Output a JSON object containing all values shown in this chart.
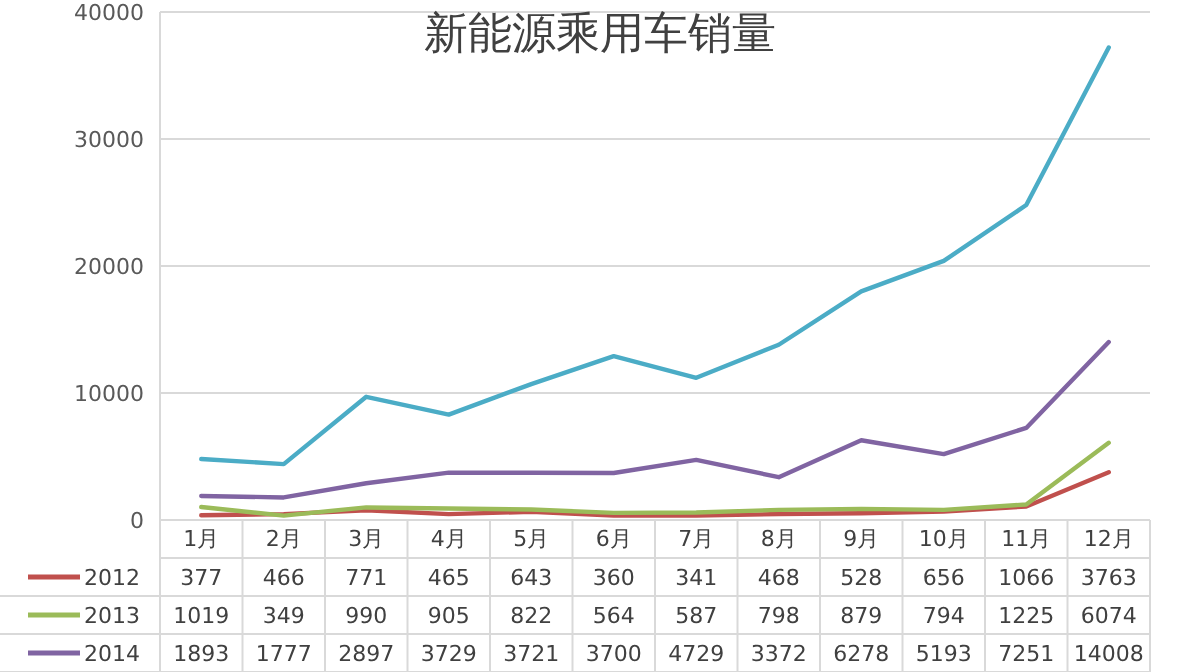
{
  "chart_data": {
    "type": "line",
    "title": "新能源乘用车销量",
    "categories": [
      "1月",
      "2月",
      "3月",
      "4月",
      "5月",
      "6月",
      "7月",
      "8月",
      "9月",
      "10月",
      "11月",
      "12月"
    ],
    "series": [
      {
        "name": "2012",
        "color": "#c0504d",
        "values": [
          377,
          466,
          771,
          465,
          643,
          360,
          341,
          468,
          528,
          656,
          1066,
          3763
        ],
        "value_labels": [
          "377",
          "466",
          "771",
          "465",
          "643",
          "360",
          "341",
          "468",
          "528",
          "656",
          "1066",
          "3763"
        ]
      },
      {
        "name": "2013",
        "color": "#9bbb59",
        "values": [
          1019,
          349,
          990,
          905,
          822,
          564,
          587,
          798,
          879,
          794,
          1225,
          6074
        ],
        "value_labels": [
          "1019",
          "349",
          "990",
          "905",
          "822",
          "564",
          "587",
          "798",
          "879",
          "794",
          "1225",
          "6074"
        ]
      },
      {
        "name": "2014",
        "color": "#8064a2",
        "values": [
          1893,
          1777,
          2897,
          3729,
          3721,
          3700,
          4729,
          3372,
          6278,
          5193,
          7251,
          14008
        ],
        "value_labels": [
          "1893",
          "1777",
          "2897",
          "3729",
          "3721",
          "3700",
          "4729",
          "3372",
          "6278",
          "5193",
          "7251",
          "14008"
        ]
      },
      {
        "color": "#4bacc6",
        "values": [
          4800,
          4400,
          9700,
          8300,
          10700,
          12900,
          11200,
          13800,
          18000,
          20400,
          24800,
          37200
        ]
      }
    ],
    "ylim": [
      0,
      40000
    ],
    "yticks": [
      0,
      10000,
      20000,
      30000,
      40000
    ],
    "grid": "y",
    "legend": "bottom",
    "line_style": "solid",
    "marker": "none"
  }
}
